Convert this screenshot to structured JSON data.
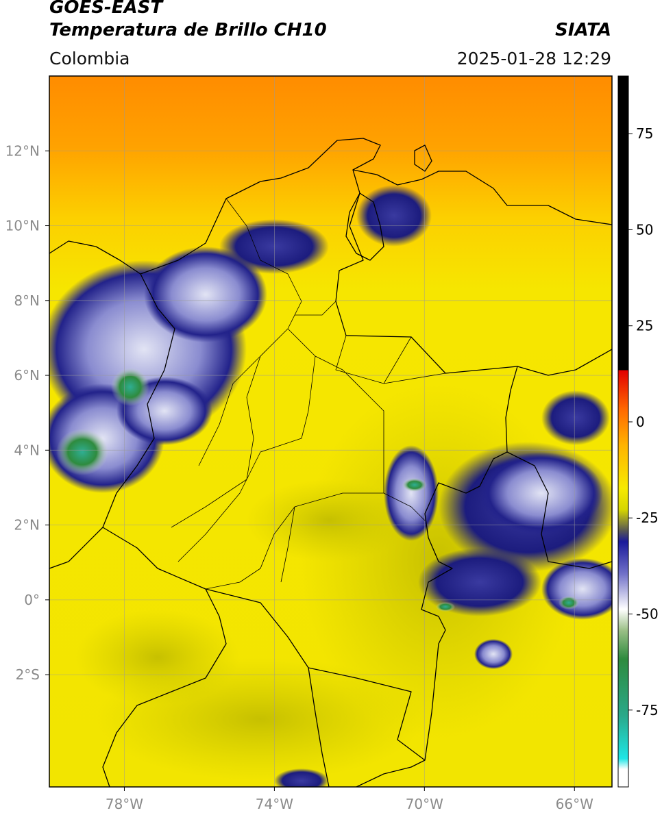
{
  "header": {
    "title": "GOES-EAST",
    "subtitle": "Temperatura de Brillo CH10",
    "organization": "SIATA",
    "region": "Colombia",
    "datetime": "2025-01-28 12:29"
  },
  "map": {
    "lon_range": [
      -80,
      -65
    ],
    "lat_range": [
      -5,
      14
    ],
    "lat_ticks": [
      {
        "value": 12,
        "label": "12°N"
      },
      {
        "value": 10,
        "label": "10°N"
      },
      {
        "value": 8,
        "label": "8°N"
      },
      {
        "value": 6,
        "label": "6°N"
      },
      {
        "value": 4,
        "label": "4°N"
      },
      {
        "value": 2,
        "label": "2°N"
      },
      {
        "value": 0,
        "label": "0°"
      },
      {
        "value": -2,
        "label": "2°S"
      }
    ],
    "lon_ticks": [
      {
        "value": -78,
        "label": "78°W"
      },
      {
        "value": -74,
        "label": "74°W"
      },
      {
        "value": -70,
        "label": "70°W"
      },
      {
        "value": -66,
        "label": "66°W"
      }
    ],
    "gridlines": true,
    "colors": {
      "background_warm": "#f5e800",
      "north_orange": "#ff9a00",
      "deep_cloud": "#1a1a7a",
      "cold_cloud": "#d8dcf2",
      "coldest_green": "#2e8b3e",
      "coldest_teal": "#2fae9a",
      "border": "#000000",
      "grid": "#9a9a9a"
    }
  },
  "colorbar": {
    "value_range": [
      -95,
      90
    ],
    "ticks": [
      {
        "value": 75,
        "label": "75"
      },
      {
        "value": 50,
        "label": "50"
      },
      {
        "value": 25,
        "label": "25"
      },
      {
        "value": 0,
        "label": "0"
      },
      {
        "value": -25,
        "label": "-25"
      },
      {
        "value": -50,
        "label": "-50"
      },
      {
        "value": -75,
        "label": "-75"
      }
    ]
  }
}
